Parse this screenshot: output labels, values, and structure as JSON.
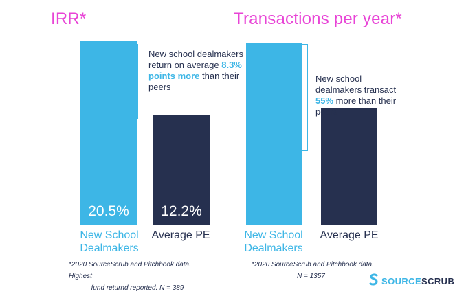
{
  "colors": {
    "title": "#e844d6",
    "bar_light": "#3db6e6",
    "bar_dark": "#26304f",
    "text_dark": "#26304f"
  },
  "chart_data": [
    {
      "type": "bar",
      "title": "IRR*",
      "categories": [
        "New School Dealmakers",
        "Average PE"
      ],
      "category_labels": [
        [
          "New School",
          "Dealmakers"
        ],
        [
          "Average PE"
        ]
      ],
      "values": [
        20.5,
        12.2
      ],
      "value_labels": [
        "20.5%",
        "12.2%"
      ],
      "unit": "%",
      "ylim": [
        0,
        22
      ],
      "annotation": {
        "prefix": "New school dealmakers return on average ",
        "highlight": "8.3% points more",
        "suffix": " than their peers"
      },
      "footnote": {
        "line1": "*2020 SourceScrub and Pitchbook data. Highest",
        "line2": "fund returnd reported. N = 389"
      }
    },
    {
      "type": "bar",
      "title": "Transactions per year*",
      "categories": [
        "New School Dealmakers",
        "Average PE"
      ],
      "category_labels": [
        [
          "New School",
          "Dealmakers"
        ],
        [
          "Average PE"
        ]
      ],
      "values": [
        155,
        100
      ],
      "relative_increase": "55%",
      "ylim": [
        0,
        167
      ],
      "annotation": {
        "prefix": "New school dealmakers transact ",
        "highlight": "55%",
        "suffix": " more than their peers"
      },
      "footnote": {
        "line1": "*2020 SourceScrub and Pitchbook data.",
        "line2": "N = 1357"
      }
    }
  ],
  "brand": {
    "icon": "sourcescrub-logo-icon",
    "part1": "SOURCE",
    "part2": "SCRUB"
  }
}
